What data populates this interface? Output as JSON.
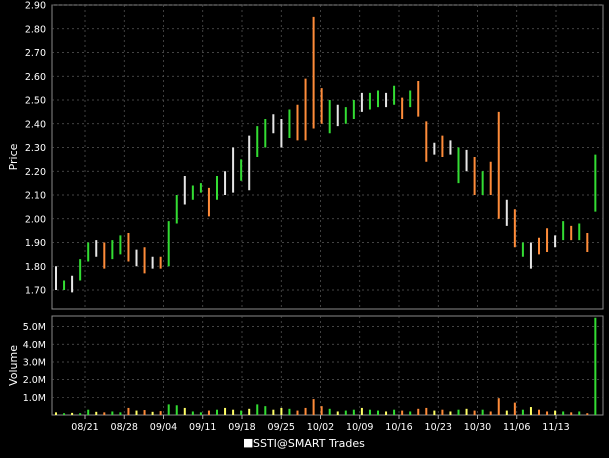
{
  "chart_data": {
    "type": "ohlc",
    "legend": "SSTI@SMART Trades",
    "colors": {
      "background": "#000000",
      "grid": "#5a5a5a",
      "up": "#33dd33",
      "down": "#ff8c3a",
      "neutral": "#e6e6e6",
      "volume_neutral": "#ffff66",
      "text": "#ffffff"
    },
    "x_tick_labels": [
      "08/21",
      "08/28",
      "09/04",
      "09/11",
      "09/18",
      "09/25",
      "10/02",
      "10/09",
      "10/16",
      "10/23",
      "10/30",
      "11/06",
      "11/13"
    ],
    "price_panel": {
      "ylabel": "Price",
      "ylim": [
        1.62,
        2.9
      ],
      "ticks": [
        "1.70",
        "1.80",
        "1.90",
        "2.00",
        "2.10",
        "2.20",
        "2.30",
        "2.40",
        "2.50",
        "2.60",
        "2.70",
        "2.80",
        "2.90"
      ]
    },
    "volume_panel": {
      "ylabel": "Volume",
      "ylim": [
        0,
        5.6
      ],
      "unit": "M",
      "ticks": [
        "1.0M",
        "2.0M",
        "3.0M",
        "4.0M",
        "5.0M"
      ]
    },
    "bars": [
      {
        "h": 1.8,
        "l": 1.7,
        "c": "n",
        "v": 0.15
      },
      {
        "h": 1.74,
        "l": 1.7,
        "c": "u",
        "v": 0.1
      },
      {
        "h": 1.76,
        "l": 1.69,
        "c": "n",
        "v": 0.12
      },
      {
        "h": 1.83,
        "l": 1.74,
        "c": "u",
        "v": 0.1
      },
      {
        "h": 1.9,
        "l": 1.82,
        "c": "u",
        "v": 0.3
      },
      {
        "h": 1.91,
        "l": 1.84,
        "c": "n",
        "v": 0.18
      },
      {
        "h": 1.9,
        "l": 1.79,
        "c": "d",
        "v": 0.15
      },
      {
        "h": 1.91,
        "l": 1.83,
        "c": "u",
        "v": 0.2
      },
      {
        "h": 1.93,
        "l": 1.85,
        "c": "u",
        "v": 0.15
      },
      {
        "h": 1.94,
        "l": 1.82,
        "c": "d",
        "v": 0.4
      },
      {
        "h": 1.87,
        "l": 1.8,
        "c": "n",
        "v": 0.25
      },
      {
        "h": 1.88,
        "l": 1.77,
        "c": "d",
        "v": 0.28
      },
      {
        "h": 1.84,
        "l": 1.79,
        "c": "n",
        "v": 0.18
      },
      {
        "h": 1.84,
        "l": 1.79,
        "c": "d",
        "v": 0.22
      },
      {
        "h": 1.99,
        "l": 1.8,
        "c": "u",
        "v": 0.6
      },
      {
        "h": 2.1,
        "l": 1.98,
        "c": "u",
        "v": 0.55
      },
      {
        "h": 2.18,
        "l": 2.06,
        "c": "n",
        "v": 0.4
      },
      {
        "h": 2.14,
        "l": 2.08,
        "c": "u",
        "v": 0.2
      },
      {
        "h": 2.15,
        "l": 2.11,
        "c": "u",
        "v": 0.15
      },
      {
        "h": 2.13,
        "l": 2.01,
        "c": "d",
        "v": 0.25
      },
      {
        "h": 2.18,
        "l": 2.08,
        "c": "u",
        "v": 0.3
      },
      {
        "h": 2.2,
        "l": 2.1,
        "c": "n",
        "v": 0.4
      },
      {
        "h": 2.3,
        "l": 2.11,
        "c": "n",
        "v": 0.3
      },
      {
        "h": 2.25,
        "l": 2.16,
        "c": "u",
        "v": 0.25
      },
      {
        "h": 2.35,
        "l": 2.12,
        "c": "n",
        "v": 0.35
      },
      {
        "h": 2.39,
        "l": 2.26,
        "c": "u",
        "v": 0.6
      },
      {
        "h": 2.42,
        "l": 2.3,
        "c": "u",
        "v": 0.5
      },
      {
        "h": 2.44,
        "l": 2.36,
        "c": "n",
        "v": 0.3
      },
      {
        "h": 2.42,
        "l": 2.3,
        "c": "n",
        "v": 0.4
      },
      {
        "h": 2.46,
        "l": 2.34,
        "c": "u",
        "v": 0.35
      },
      {
        "h": 2.48,
        "l": 2.33,
        "c": "d",
        "v": 0.25
      },
      {
        "h": 2.59,
        "l": 2.33,
        "c": "d",
        "v": 0.4
      },
      {
        "h": 2.85,
        "l": 2.38,
        "c": "d",
        "v": 0.9
      },
      {
        "h": 2.55,
        "l": 2.4,
        "c": "d",
        "v": 0.5
      },
      {
        "h": 2.5,
        "l": 2.36,
        "c": "u",
        "v": 0.35
      },
      {
        "h": 2.48,
        "l": 2.39,
        "c": "n",
        "v": 0.2
      },
      {
        "h": 2.47,
        "l": 2.4,
        "c": "u",
        "v": 0.25
      },
      {
        "h": 2.5,
        "l": 2.42,
        "c": "u",
        "v": 0.3
      },
      {
        "h": 2.53,
        "l": 2.45,
        "c": "n",
        "v": 0.4
      },
      {
        "h": 2.53,
        "l": 2.46,
        "c": "u",
        "v": 0.3
      },
      {
        "h": 2.54,
        "l": 2.47,
        "c": "u",
        "v": 0.25
      },
      {
        "h": 2.53,
        "l": 2.47,
        "c": "n",
        "v": 0.2
      },
      {
        "h": 2.56,
        "l": 2.48,
        "c": "u",
        "v": 0.3
      },
      {
        "h": 2.51,
        "l": 2.42,
        "c": "d",
        "v": 0.25
      },
      {
        "h": 2.54,
        "l": 2.47,
        "c": "u",
        "v": 0.2
      },
      {
        "h": 2.58,
        "l": 2.43,
        "c": "d",
        "v": 0.35
      },
      {
        "h": 2.41,
        "l": 2.24,
        "c": "d",
        "v": 0.4
      },
      {
        "h": 2.32,
        "l": 2.27,
        "c": "n",
        "v": 0.25
      },
      {
        "h": 2.35,
        "l": 2.26,
        "c": "d",
        "v": 0.3
      },
      {
        "h": 2.33,
        "l": 2.27,
        "c": "n",
        "v": 0.2
      },
      {
        "h": 2.3,
        "l": 2.15,
        "c": "u",
        "v": 0.3
      },
      {
        "h": 2.29,
        "l": 2.2,
        "c": "n",
        "v": 0.35
      },
      {
        "h": 2.26,
        "l": 2.1,
        "c": "d",
        "v": 0.25
      },
      {
        "h": 2.2,
        "l": 2.1,
        "c": "u",
        "v": 0.3
      },
      {
        "h": 2.24,
        "l": 2.1,
        "c": "d",
        "v": 0.2
      },
      {
        "h": 2.45,
        "l": 2.0,
        "c": "d",
        "v": 0.95
      },
      {
        "h": 2.08,
        "l": 1.97,
        "c": "n",
        "v": 0.25
      },
      {
        "h": 2.04,
        "l": 1.88,
        "c": "d",
        "v": 0.7
      },
      {
        "h": 1.9,
        "l": 1.84,
        "c": "u",
        "v": 0.3
      },
      {
        "h": 1.9,
        "l": 1.79,
        "c": "n",
        "v": 0.45
      },
      {
        "h": 1.92,
        "l": 1.85,
        "c": "d",
        "v": 0.3
      },
      {
        "h": 1.96,
        "l": 1.86,
        "c": "d",
        "v": 0.2
      },
      {
        "h": 1.93,
        "l": 1.88,
        "c": "n",
        "v": 0.25
      },
      {
        "h": 1.99,
        "l": 1.91,
        "c": "u",
        "v": 0.2
      },
      {
        "h": 1.97,
        "l": 1.91,
        "c": "d",
        "v": 0.15
      },
      {
        "h": 1.98,
        "l": 1.91,
        "c": "u",
        "v": 0.2
      },
      {
        "h": 1.94,
        "l": 1.86,
        "c": "d",
        "v": 0.1
      },
      {
        "h": 2.27,
        "l": 2.03,
        "c": "u",
        "v": 5.5
      }
    ]
  }
}
